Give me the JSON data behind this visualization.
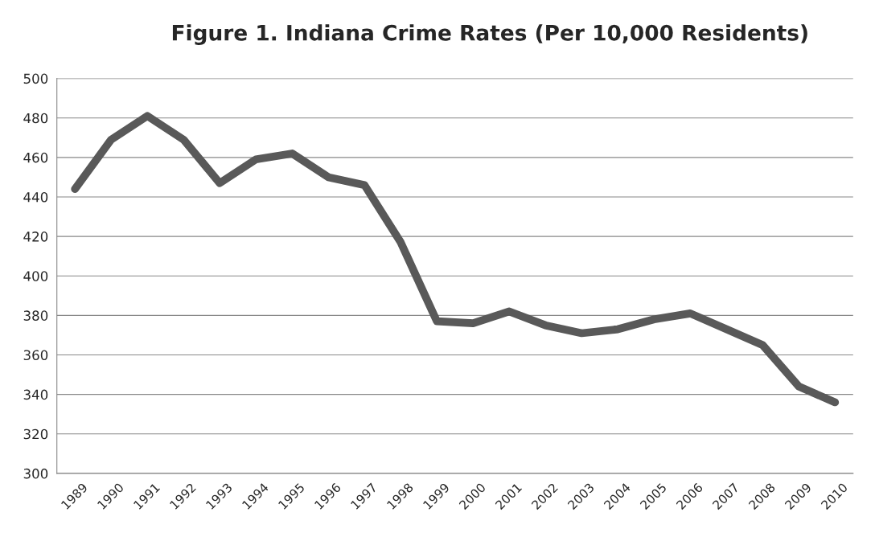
{
  "chart_data": {
    "type": "line",
    "title": "Figure 1. Indiana Crime Rates (Per 10,000 Residents)",
    "categories": [
      "1989",
      "1990",
      "1991",
      "1992",
      "1993",
      "1994",
      "1995",
      "1996",
      "1997",
      "1998",
      "1999",
      "2000",
      "2001",
      "2002",
      "2003",
      "2004",
      "2005",
      "2006",
      "2007",
      "2008",
      "2009",
      "2010"
    ],
    "series": [
      {
        "color": "#595959",
        "values": [
          444,
          469,
          481,
          469,
          447,
          459,
          462,
          450,
          446,
          417,
          377,
          376,
          382,
          375,
          371,
          373,
          378,
          381,
          373,
          365,
          344,
          336
        ]
      }
    ],
    "ylim": [
      300,
      500
    ],
    "yticks": [
      300,
      320,
      340,
      360,
      380,
      400,
      420,
      440,
      460,
      480,
      500
    ],
    "grid": "y",
    "marker": "none",
    "line_style": "solid"
  }
}
